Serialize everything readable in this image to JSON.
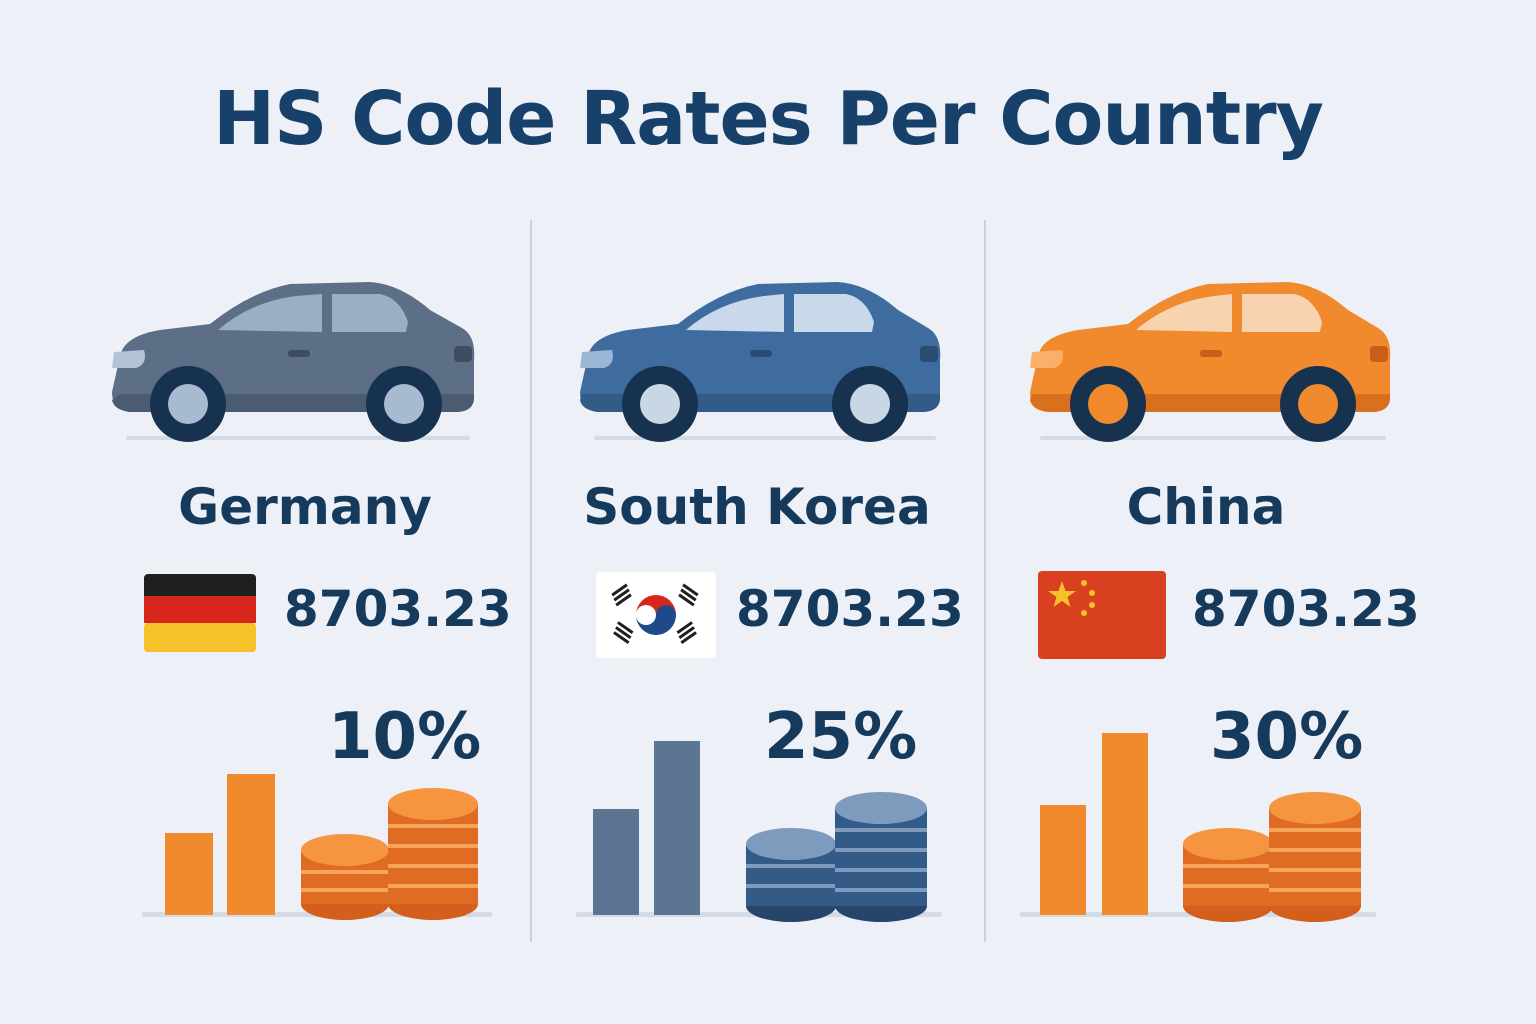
{
  "title": "HS Code Rates Per Country",
  "countries": [
    {
      "name": "Germany",
      "flag_icon": "germany-flag-icon",
      "hs_code": "8703.23",
      "rate": "10%",
      "rate_value": 10,
      "car_color": "#5c6f86",
      "bar_color": "#f08a2c",
      "coin_color": "#f08a2c"
    },
    {
      "name": "South Korea",
      "flag_icon": "south-korea-flag-icon",
      "hs_code": "8703.23",
      "rate": "25%",
      "rate_value": 25,
      "car_color": "#3e6c9e",
      "bar_color": "#5c7592",
      "coin_color": "#3d6290"
    },
    {
      "name": "China",
      "flag_icon": "china-flag-icon",
      "hs_code": "8703.23",
      "rate": "30%",
      "rate_value": 30,
      "car_color": "#f08a2c",
      "bar_color": "#f08a2c",
      "coin_color": "#f08a2c"
    }
  ]
}
